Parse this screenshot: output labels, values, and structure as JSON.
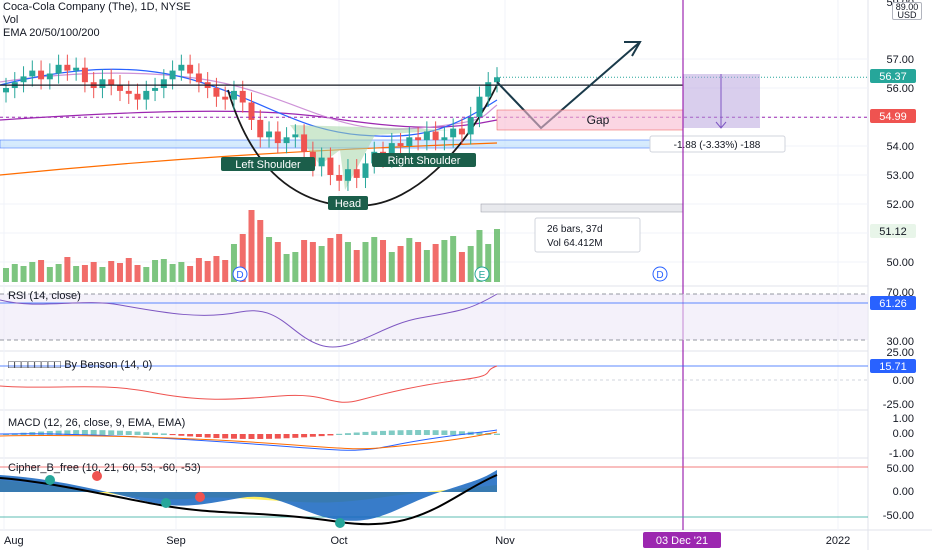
{
  "legend": {
    "symbol": "Coca-Cola Company (The), 1D, NYSE",
    "vol": "Vol",
    "ema": "EMA 20/50/100/200"
  },
  "currency_box": "89.00 USD",
  "price_axis": {
    "ticks": [
      "57.00",
      "56.00",
      "55.00",
      "54.00",
      "53.00",
      "52.00",
      "51.00",
      "50.00"
    ],
    "top_partial": "59.00",
    "badges": {
      "last": "56.37",
      "level": "54.99",
      "vol": "51.12"
    }
  },
  "time_axis": [
    "Aug",
    "Sep",
    "Oct",
    "Nov",
    "2022"
  ],
  "time_badge": "03 Dec '21",
  "annotations": {
    "left_shoulder": "Left Shoulder",
    "head": "Head",
    "right_shoulder": "Right Shoulder",
    "gap": "Gap",
    "range_measure": "-1.88 (-3.33%) -188",
    "bars_measure": "26 bars, 37d",
    "vol_measure": "Vol 64.412M",
    "dividend_marker": "D",
    "earnings_marker": "E"
  },
  "panes": {
    "rsi": {
      "label": "RSI (14, close)",
      "badge": "61.26",
      "ticks": [
        "70.00",
        "30.00"
      ]
    },
    "benson": {
      "label": "□□□□□□□□ By Benson (14, 0)",
      "badge": "15.71",
      "ticks": [
        "25.00",
        "0.00",
        "-25.00"
      ]
    },
    "macd": {
      "label": "MACD (12, 26, close, 9, EMA, EMA)",
      "ticks": [
        "1.00",
        "0.00",
        "-1.00"
      ]
    },
    "cipher": {
      "label": "Cipher_B_free (10, 21, 60, 53, -60, -53)",
      "ticks": [
        "50.00",
        "0.00",
        "-50.00"
      ]
    }
  },
  "colors": {
    "up": "#26a69a",
    "down": "#ef5350",
    "vertical_line": "#9c27b0",
    "axis_badge_blue": "#2962ff",
    "last_badge": "#26a69a",
    "level_badge": "#ef5350"
  },
  "chart_data": {
    "type": "candlestick",
    "title": "Coca-Cola Company (The), 1D, NYSE",
    "ylim": [
      49.5,
      58.5
    ],
    "x_labels": [
      "Aug",
      "Sep",
      "Oct",
      "Nov",
      "2022"
    ],
    "approx_close_path": [
      56.0,
      56.2,
      56.4,
      56.6,
      56.3,
      56.5,
      56.8,
      56.6,
      56.7,
      56.2,
      56.0,
      56.3,
      56.1,
      55.9,
      55.8,
      55.6,
      55.9,
      56.0,
      56.3,
      56.6,
      56.8,
      56.5,
      56.2,
      56.0,
      55.7,
      55.6,
      55.9,
      55.5,
      54.9,
      54.3,
      54.5,
      54.1,
      54.3,
      54.4,
      53.8,
      53.3,
      53.6,
      53.0,
      52.8,
      53.2,
      52.9,
      53.4,
      53.8,
      53.6,
      54.1,
      54.0,
      54.3,
      54.2,
      54.5,
      54.2,
      54.3,
      54.6,
      54.4,
      55.0,
      55.7,
      56.2,
      56.37
    ],
    "horizontal_levels": [
      56.1,
      54.99,
      54.1,
      53.9
    ],
    "events": [
      "Left Shoulder",
      "Head",
      "Right Shoulder",
      "Gap"
    ]
  }
}
